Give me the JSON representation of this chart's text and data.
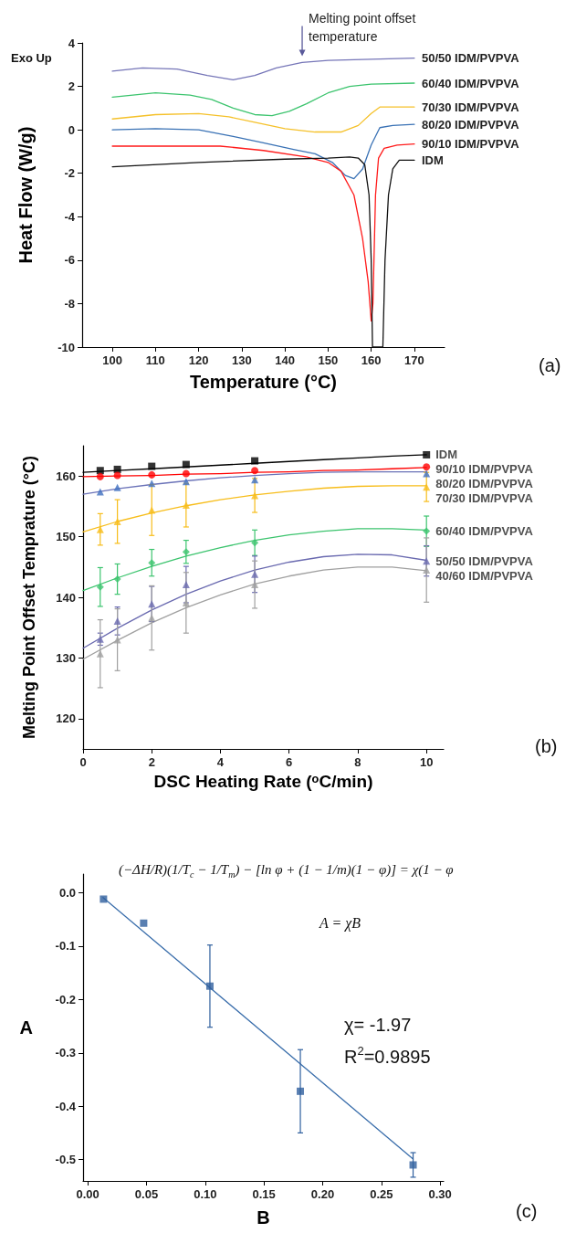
{
  "chart_data": [
    {
      "type": "line",
      "xlabel": "Temperature (°C)",
      "ylabel": "Heat Flow (W/g)",
      "xlim": [
        93,
        177
      ],
      "ylim": [
        -10,
        4
      ],
      "xticks": [
        100,
        110,
        120,
        130,
        140,
        150,
        160,
        170
      ],
      "yticks": [
        -10,
        -8,
        -6,
        -4,
        -2,
        0,
        2,
        4
      ],
      "annotations": [
        "Exo Up",
        {
          "text": "Melting point offset temperature",
          "x": 144,
          "y": 3.1
        },
        "(a)"
      ],
      "series": [
        {
          "name": "50/50 IDM/PVPVA",
          "color": "#7676b8",
          "x": [
            100,
            107,
            115,
            122,
            128,
            133,
            138,
            144,
            150,
            160,
            170
          ],
          "values": [
            2.7,
            2.85,
            2.8,
            2.5,
            2.3,
            2.5,
            2.85,
            3.1,
            3.2,
            3.25,
            3.3
          ]
        },
        {
          "name": "60/40 IDM/PVPVA",
          "color": "#3cc46e",
          "x": [
            100,
            110,
            118,
            123,
            128,
            133,
            137,
            141,
            145,
            150,
            155,
            160,
            170
          ],
          "values": [
            1.5,
            1.7,
            1.6,
            1.4,
            1.0,
            0.7,
            0.65,
            0.85,
            1.2,
            1.7,
            2.0,
            2.1,
            2.15
          ]
        },
        {
          "name": "70/30 IDM/PVPVA",
          "color": "#f5c12a",
          "x": [
            100,
            110,
            120,
            127,
            133,
            140,
            147,
            153,
            157,
            160,
            162,
            170
          ],
          "values": [
            0.5,
            0.7,
            0.75,
            0.6,
            0.35,
            0.05,
            -0.1,
            -0.1,
            0.2,
            0.75,
            1.05,
            1.05
          ]
        },
        {
          "name": "80/20 IDM/PVPVA",
          "color": "#3a72b5",
          "x": [
            100,
            110,
            120,
            128,
            135,
            142,
            147,
            151,
            154,
            156,
            158,
            160,
            161,
            162,
            165,
            170
          ],
          "values": [
            0.0,
            0.05,
            0.0,
            -0.3,
            -0.6,
            -0.9,
            -1.1,
            -1.5,
            -2.1,
            -2.25,
            -1.8,
            -0.7,
            -0.3,
            0.1,
            0.2,
            0.25
          ]
        },
        {
          "name": "90/10 IDM/PVPVA",
          "color": "#ff1a1a",
          "x": [
            100,
            125,
            135,
            145,
            150,
            153,
            156,
            158,
            159.3,
            160,
            160.4,
            161,
            161.7,
            163,
            166,
            170
          ],
          "values": [
            -0.75,
            -0.75,
            -0.95,
            -1.25,
            -1.5,
            -1.9,
            -3.0,
            -5.0,
            -7.0,
            -8.8,
            -8.0,
            -3.0,
            -1.3,
            -0.85,
            -0.7,
            -0.65
          ]
        },
        {
          "name": "IDM",
          "color": "#111111",
          "x": [
            100,
            120,
            140,
            150,
            155,
            157,
            158.5,
            159.5,
            160,
            160.3,
            162.7,
            163.2,
            164,
            165,
            166.5,
            170
          ],
          "values": [
            -1.7,
            -1.5,
            -1.35,
            -1.3,
            -1.25,
            -1.3,
            -1.6,
            -3.0,
            -6.0,
            -10.0,
            -10.0,
            -6.0,
            -3.0,
            -1.8,
            -1.4,
            -1.4
          ]
        }
      ]
    },
    {
      "type": "scatter",
      "xlabel": "DSC Heating Rate (ᵒC/min)",
      "ylabel": "Melting Point Offset Temprature (°C)",
      "xlim": [
        0,
        10.5
      ],
      "ylim": [
        115,
        165
      ],
      "xticks": [
        0,
        2,
        4,
        6,
        8,
        10
      ],
      "yticks": [
        120,
        130,
        140,
        150,
        160
      ],
      "x": [
        0.5,
        1,
        2,
        3,
        5,
        10
      ],
      "annotations": [
        "(b)"
      ],
      "series": [
        {
          "name": "IDM",
          "color": "#000000",
          "marker": "square",
          "values": [
            160.9,
            161.1,
            161.6,
            161.9,
            162.5,
            163.5
          ]
        },
        {
          "name": "90/10 IDM/PVPVA",
          "color": "#ff0000",
          "marker": "circle",
          "values": [
            159.9,
            160.1,
            160.2,
            160.4,
            160.9,
            161.5
          ]
        },
        {
          "name": "80/20 IDM/PVPVA",
          "color": "#3d6ebf",
          "marker": "triangle",
          "values": [
            157.4,
            158.1,
            158.8,
            159.1,
            159.4,
            160.4
          ]
        },
        {
          "name": "70/30 IDM/PVPVA",
          "color": "#f7bd1a",
          "marker": "triangle",
          "values": [
            151.2,
            152.5,
            154.4,
            155.2,
            156.8,
            158.2
          ],
          "errors": [
            2.6,
            3.6,
            4.2,
            3.6,
            2.8,
            2.4
          ]
        },
        {
          "name": "60/40 IDM/PVPVA",
          "color": "#3cc46e",
          "marker": "diamond",
          "values": [
            141.7,
            143.0,
            145.7,
            147.5,
            149.0,
            150.9
          ],
          "errors": [
            3.2,
            2.5,
            2.2,
            1.9,
            2.1,
            2.5
          ]
        },
        {
          "name": "50/50 IDM/PVPVA",
          "color": "#6a6ab0",
          "marker": "triangle",
          "values": [
            133.1,
            136.1,
            138.9,
            142.1,
            143.8,
            146.0
          ],
          "errors": [
            1.0,
            2.3,
            2.9,
            3.0,
            3.0,
            2.5
          ]
        },
        {
          "name": "40/60 IDM/PVPVA",
          "color": "#a0a0a0",
          "marker": "triangle",
          "values": [
            130.7,
            133.0,
            136.6,
            139.1,
            142.1,
            144.5
          ],
          "errors": [
            5.6,
            5.1,
            5.3,
            5.0,
            3.9,
            5.3
          ]
        },
        {
          "type": "line",
          "color": "#000000",
          "x": [
            0,
            1,
            2,
            3,
            4,
            5,
            6,
            7,
            8,
            9,
            10
          ],
          "values": [
            160.6,
            160.9,
            161.2,
            161.5,
            161.8,
            162.1,
            162.4,
            162.7,
            163.0,
            163.3,
            163.5
          ]
        },
        {
          "type": "line",
          "color": "#ff0000",
          "x": [
            0,
            1,
            2,
            3,
            4,
            5,
            6,
            7,
            8,
            9,
            10
          ],
          "values": [
            159.9,
            160.0,
            160.1,
            160.3,
            160.4,
            160.6,
            160.7,
            160.9,
            161.0,
            161.2,
            161.4
          ]
        },
        {
          "type": "line",
          "color": "#6a72b8",
          "x": [
            0,
            1,
            2,
            3,
            4,
            5,
            6,
            7,
            8,
            9,
            10
          ],
          "values": [
            157.0,
            157.9,
            158.6,
            159.2,
            159.7,
            160.1,
            160.4,
            160.6,
            160.7,
            160.7,
            160.7
          ]
        },
        {
          "type": "line",
          "color": "#f7bd1a",
          "x": [
            0,
            1,
            2,
            3,
            4,
            5,
            6,
            7,
            8,
            9,
            10
          ],
          "values": [
            150.8,
            152.5,
            153.9,
            155.1,
            156.1,
            156.9,
            157.5,
            158.0,
            158.3,
            158.4,
            158.4
          ]
        },
        {
          "type": "line",
          "color": "#3cc46e",
          "x": [
            0,
            1,
            2,
            3,
            4,
            5,
            6,
            7,
            8,
            9,
            10
          ],
          "values": [
            141.1,
            143.2,
            145.1,
            146.8,
            148.2,
            149.4,
            150.3,
            150.9,
            151.3,
            151.3,
            151.1
          ]
        },
        {
          "type": "line",
          "color": "#6a6ab0",
          "x": [
            0,
            1,
            2,
            3,
            4,
            5,
            6,
            7,
            8,
            9,
            10
          ],
          "values": [
            131.6,
            134.9,
            137.9,
            140.5,
            142.7,
            144.5,
            145.8,
            146.7,
            147.1,
            147.0,
            146.1
          ]
        },
        {
          "type": "line",
          "color": "#a0a0a0",
          "x": [
            0,
            1,
            2,
            3,
            4,
            5,
            6,
            7,
            8,
            9,
            10
          ],
          "values": [
            129.8,
            132.9,
            135.8,
            138.3,
            140.4,
            142.2,
            143.5,
            144.5,
            145.0,
            145.0,
            144.4
          ]
        }
      ]
    },
    {
      "type": "scatter",
      "xlabel": "B",
      "ylabel": "A",
      "xlim": [
        -0.004,
        0.303
      ],
      "ylim": [
        -0.54,
        0.035
      ],
      "xticks": [
        {
          "value": 0,
          "label": "0.00"
        },
        {
          "value": 0.05,
          "label": "0.05"
        },
        {
          "value": 0.1,
          "label": "0.10"
        },
        {
          "value": 0.15,
          "label": "0.15"
        },
        {
          "value": 0.2,
          "label": "0.20"
        },
        {
          "value": 0.25,
          "label": "0.25"
        },
        {
          "value": 0.3,
          "label": "0.30"
        }
      ],
      "yticks": [
        {
          "value": 0,
          "label": "0.0"
        },
        {
          "value": -0.1,
          "label": "-0.1"
        },
        {
          "value": -0.2,
          "label": "-0.2"
        },
        {
          "value": -0.3,
          "label": "-0.3"
        },
        {
          "value": -0.4,
          "label": "-0.4"
        },
        {
          "value": -0.5,
          "label": "-0.5"
        }
      ],
      "annotations": [
        "(−ΔH/R)(1/T$_{c}$ − 1/T$_{m}$) − [ln φ + (1 − 1/m)(1 − φ)] = χ(1 − φ",
        "A = χB",
        "χ= -1.97",
        "R$^{2}$=0.9895",
        "(c)"
      ],
      "series": [
        {
          "color": "#2f5f9e",
          "marker": "square",
          "x": [
            0.0134,
            0.0476,
            0.104,
            0.181,
            0.277
          ],
          "values": [
            -0.012,
            -0.057,
            -0.175,
            -0.372,
            -0.51
          ],
          "errors": [
            null,
            null,
            0.077,
            0.078,
            0.023
          ]
        },
        {
          "type": "line",
          "color": "#3a6eab",
          "x": [
            0.013,
            0.277
          ],
          "values": [
            -0.009,
            -0.499
          ]
        }
      ]
    }
  ]
}
